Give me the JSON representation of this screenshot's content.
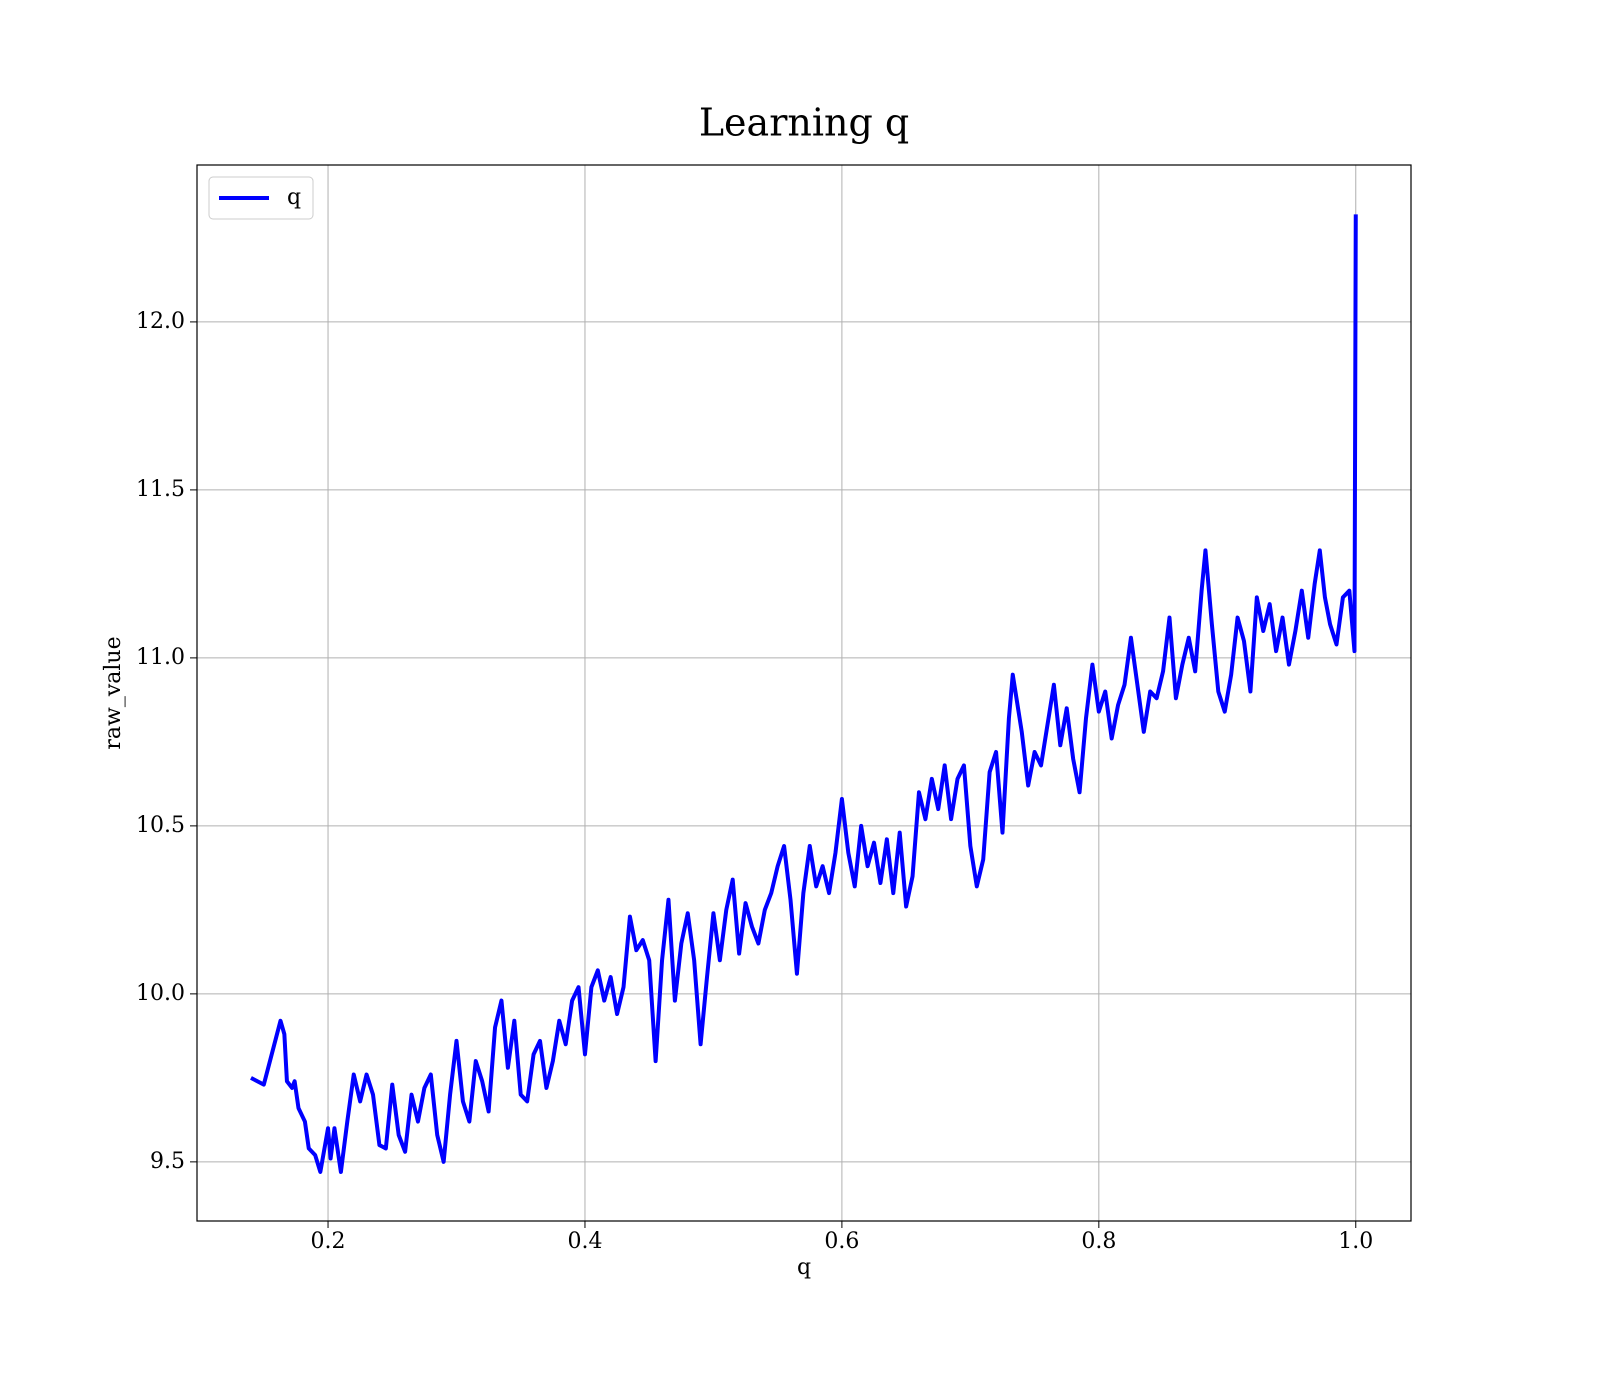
{
  "chart_data": {
    "type": "line",
    "title": "Learning q",
    "xlabel": "q",
    "ylabel": "raw_value",
    "x": [
      0.14,
      0.15,
      0.163,
      0.166,
      0.168,
      0.172,
      0.174,
      0.177,
      0.182,
      0.185,
      0.19,
      0.194,
      0.2,
      0.202,
      0.205,
      0.21,
      0.215,
      0.22,
      0.225,
      0.23,
      0.235,
      0.24,
      0.245,
      0.25,
      0.255,
      0.26,
      0.265,
      0.27,
      0.275,
      0.28,
      0.285,
      0.29,
      0.295,
      0.3,
      0.305,
      0.31,
      0.315,
      0.32,
      0.325,
      0.33,
      0.335,
      0.34,
      0.345,
      0.35,
      0.355,
      0.36,
      0.365,
      0.37,
      0.375,
      0.38,
      0.385,
      0.39,
      0.395,
      0.4,
      0.405,
      0.41,
      0.415,
      0.42,
      0.425,
      0.43,
      0.435,
      0.44,
      0.445,
      0.45,
      0.455,
      0.46,
      0.465,
      0.47,
      0.475,
      0.48,
      0.485,
      0.49,
      0.495,
      0.5,
      0.505,
      0.51,
      0.515,
      0.52,
      0.525,
      0.53,
      0.535,
      0.54,
      0.545,
      0.55,
      0.555,
      0.56,
      0.565,
      0.57,
      0.575,
      0.58,
      0.585,
      0.59,
      0.595,
      0.6,
      0.605,
      0.61,
      0.615,
      0.62,
      0.625,
      0.63,
      0.635,
      0.64,
      0.645,
      0.65,
      0.655,
      0.66,
      0.665,
      0.67,
      0.675,
      0.68,
      0.685,
      0.69,
      0.695,
      0.7,
      0.705,
      0.71,
      0.715,
      0.72,
      0.725,
      0.73,
      0.733,
      0.74,
      0.745,
      0.75,
      0.755,
      0.76,
      0.765,
      0.77,
      0.775,
      0.78,
      0.785,
      0.79,
      0.795,
      0.8,
      0.805,
      0.81,
      0.815,
      0.82,
      0.825,
      0.83,
      0.835,
      0.84,
      0.845,
      0.85,
      0.855,
      0.86,
      0.865,
      0.87,
      0.875,
      0.88,
      0.883,
      0.888,
      0.893,
      0.898,
      0.903,
      0.908,
      0.913,
      0.918,
      0.923,
      0.928,
      0.933,
      0.938,
      0.943,
      0.948,
      0.953,
      0.958,
      0.963,
      0.968,
      0.972,
      0.976,
      0.98,
      0.985,
      0.99,
      0.995,
      0.999,
      1.0
    ],
    "series": [
      {
        "name": "q",
        "color": "#0000ff",
        "values": [
          9.75,
          9.73,
          9.92,
          9.88,
          9.74,
          9.72,
          9.74,
          9.66,
          9.62,
          9.54,
          9.52,
          9.47,
          9.6,
          9.51,
          9.6,
          9.47,
          9.62,
          9.76,
          9.68,
          9.76,
          9.7,
          9.55,
          9.54,
          9.73,
          9.58,
          9.53,
          9.7,
          9.62,
          9.72,
          9.76,
          9.58,
          9.5,
          9.7,
          9.86,
          9.68,
          9.62,
          9.8,
          9.74,
          9.65,
          9.9,
          9.98,
          9.78,
          9.92,
          9.7,
          9.68,
          9.82,
          9.86,
          9.72,
          9.8,
          9.92,
          9.85,
          9.98,
          10.02,
          9.82,
          10.02,
          10.07,
          9.98,
          10.05,
          9.94,
          10.02,
          10.23,
          10.13,
          10.16,
          10.1,
          9.8,
          10.1,
          10.28,
          9.98,
          10.15,
          10.24,
          10.1,
          9.85,
          10.05,
          10.24,
          10.1,
          10.25,
          10.34,
          10.12,
          10.27,
          10.2,
          10.15,
          10.25,
          10.3,
          10.38,
          10.44,
          10.28,
          10.06,
          10.3,
          10.44,
          10.32,
          10.38,
          10.3,
          10.42,
          10.58,
          10.42,
          10.32,
          10.5,
          10.38,
          10.45,
          10.33,
          10.46,
          10.3,
          10.48,
          10.26,
          10.35,
          10.6,
          10.52,
          10.64,
          10.55,
          10.68,
          10.52,
          10.64,
          10.68,
          10.44,
          10.32,
          10.4,
          10.66,
          10.72,
          10.48,
          10.82,
          10.95,
          10.78,
          10.62,
          10.72,
          10.68,
          10.8,
          10.92,
          10.74,
          10.85,
          10.7,
          10.6,
          10.82,
          10.98,
          10.84,
          10.9,
          10.76,
          10.86,
          10.92,
          11.06,
          10.92,
          10.78,
          10.9,
          10.88,
          10.96,
          11.12,
          10.88,
          10.98,
          11.06,
          10.96,
          11.2,
          11.32,
          11.1,
          10.9,
          10.84,
          10.95,
          11.12,
          11.05,
          10.9,
          11.18,
          11.08,
          11.16,
          11.02,
          11.12,
          10.98,
          11.08,
          11.2,
          11.06,
          11.22,
          11.32,
          11.18,
          11.1,
          11.04,
          11.18,
          11.2,
          11.02,
          12.32
        ]
      }
    ],
    "xlim": [
      0.098,
      1.043
    ],
    "ylim": [
      9.324,
      12.467
    ],
    "xticks": [
      0.2,
      0.4,
      0.6,
      0.8,
      {
        "value": 1.0,
        "label": "1.0"
      }
    ],
    "yticks": [
      9.5,
      {
        "value": 10.0,
        "label": "10.0"
      },
      10.5,
      {
        "value": 11.0,
        "label": "11.0"
      },
      11.5,
      {
        "value": 12.0,
        "label": "12.0"
      }
    ],
    "grid": true,
    "legend": "upper left"
  }
}
